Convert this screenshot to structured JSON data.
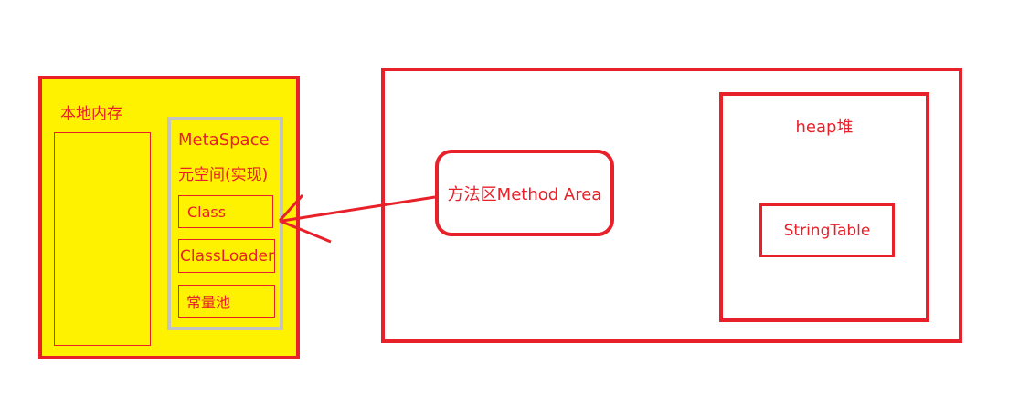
{
  "native_memory": {
    "label": "本地内存"
  },
  "metaspace": {
    "title": "MetaSpace",
    "subtitle": "元空间(实现)",
    "items": [
      "Class",
      "ClassLoader",
      "常量池"
    ]
  },
  "method_area": {
    "label": "方法区Method Area"
  },
  "heap": {
    "label": "heap堆",
    "string_table": "StringTable"
  },
  "colors": {
    "border": "#e8202a",
    "native_fill": "#fff200",
    "metaspace_border": "#c3c3c3"
  }
}
